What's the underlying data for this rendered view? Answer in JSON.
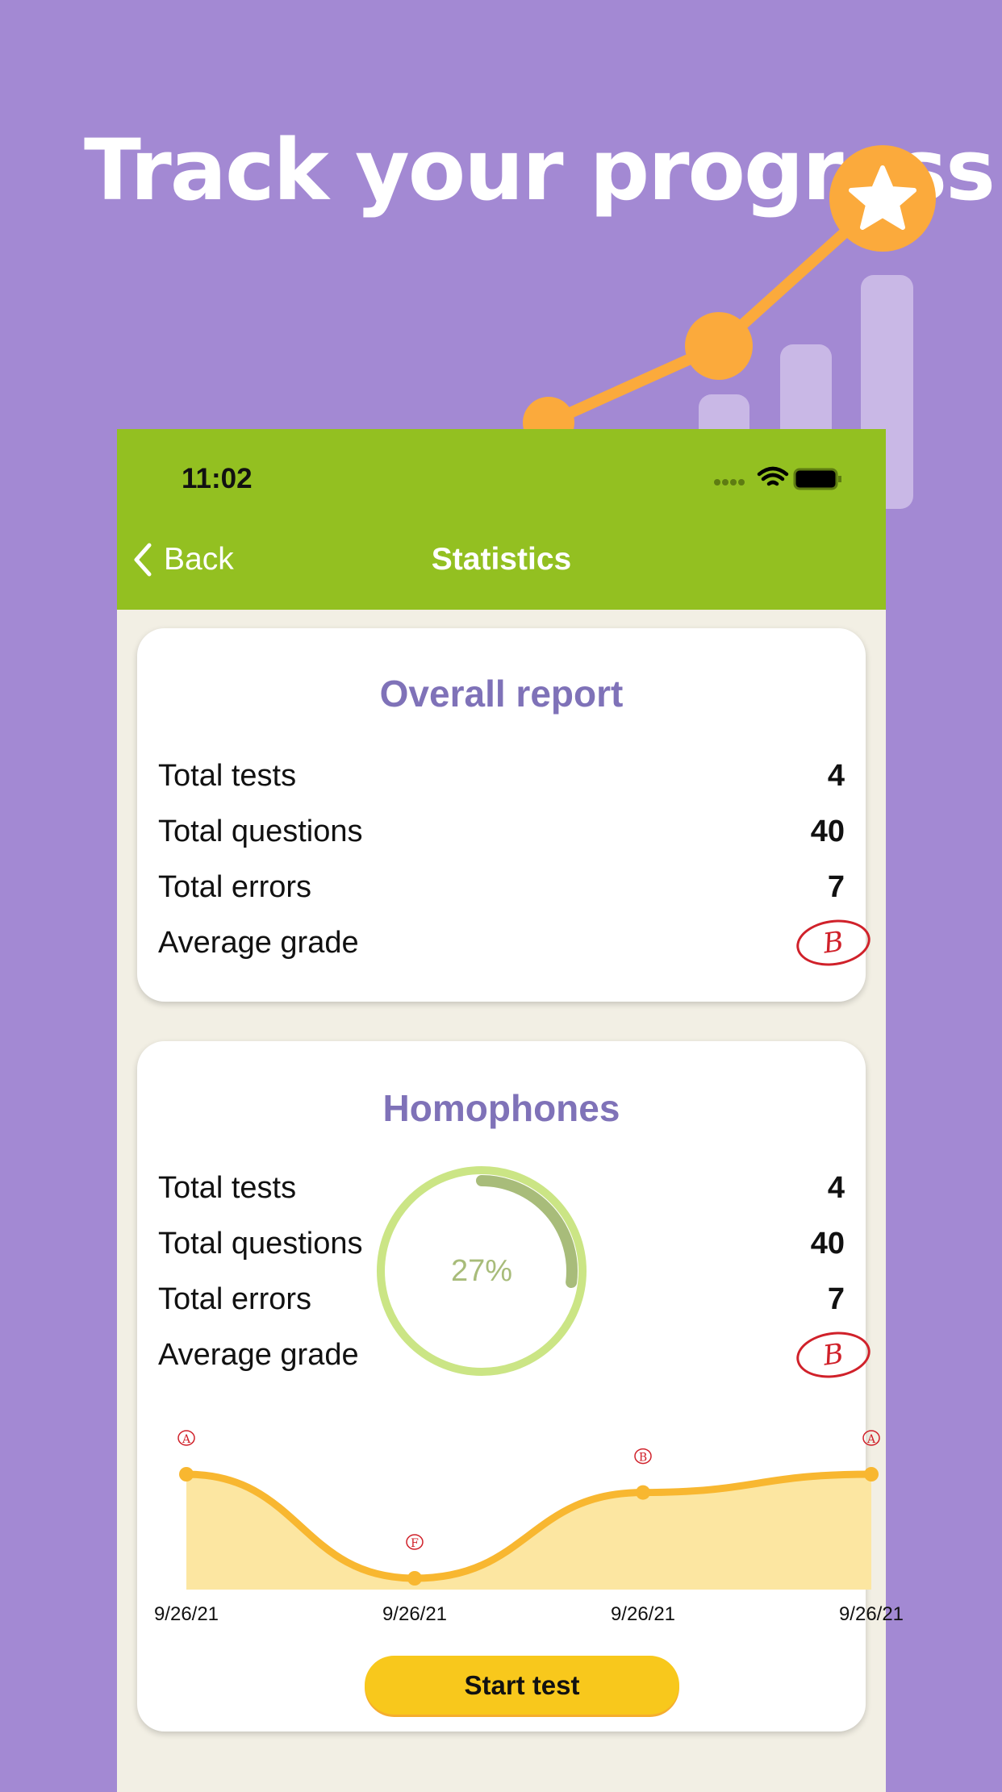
{
  "headline": "Track your progress",
  "colors": {
    "background": "#a389d3",
    "navbar": "#93c021",
    "accent_orange": "#fbaa3c",
    "card_title": "#7f72b8",
    "chart_line": "#f8b730",
    "chart_fill": "#fce6a1",
    "grade_red": "#d0212a",
    "button": "#f8c81c"
  },
  "status_bar": {
    "time": "11:02",
    "icons": [
      "signal-dots-icon",
      "wifi-icon",
      "battery-icon"
    ]
  },
  "nav": {
    "back_label": "Back",
    "title": "Statistics"
  },
  "overall": {
    "title": "Overall report",
    "rows": [
      {
        "label": "Total tests",
        "value": "4"
      },
      {
        "label": "Total questions",
        "value": "40"
      },
      {
        "label": "Total errors",
        "value": "7"
      },
      {
        "label": "Average grade",
        "value": "B"
      }
    ]
  },
  "homophones": {
    "title": "Homophones",
    "progress_label": "27%",
    "progress": 0.27,
    "rows": [
      {
        "label": "Total tests",
        "value": "4"
      },
      {
        "label": "Total questions",
        "value": "40"
      },
      {
        "label": "Total errors",
        "value": "7"
      },
      {
        "label": "Average grade",
        "value": "B"
      }
    ],
    "start_label": "Start test"
  },
  "chart_data": {
    "type": "area",
    "x": [
      "9/26/21",
      "9/26/21",
      "9/26/21",
      "9/26/21"
    ],
    "grades": [
      "A",
      "F",
      "B",
      "A"
    ]
  }
}
